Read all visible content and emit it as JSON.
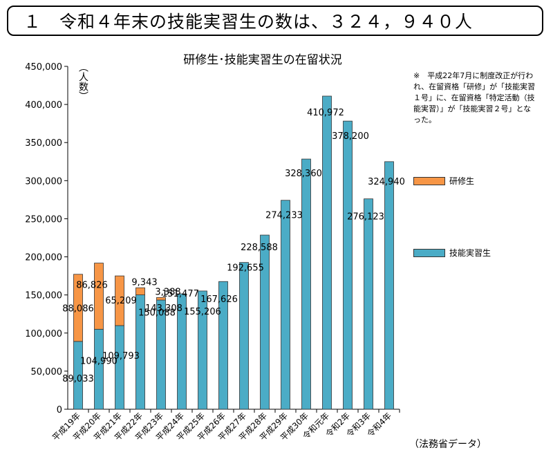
{
  "headline": "１　令和４年末の技能実習生の数は、３２４，９４０人",
  "chart_data": {
    "type": "bar",
    "stacked": true,
    "title": "研修生･技能実習生の在留状況",
    "ylabel": "（人数）",
    "xlabel": "",
    "ylim": [
      0,
      450000
    ],
    "yticks": [
      0,
      50000,
      100000,
      150000,
      200000,
      250000,
      300000,
      350000,
      400000,
      450000
    ],
    "ytick_labels": [
      "0",
      "50,000",
      "100,000",
      "150,000",
      "200,000",
      "250,000",
      "300,000",
      "350,000",
      "400,000",
      "450,000"
    ],
    "categories": [
      "平成19年",
      "平成20年",
      "平成21年",
      "平成22年",
      "平成23年",
      "平成24年",
      "平成25年",
      "平成26年",
      "平成27年",
      "平成28年",
      "平成29年",
      "平成30年",
      "令和元年",
      "令和2年",
      "令和3年",
      "令和4年"
    ],
    "series": [
      {
        "name": "技能実習生",
        "color": "#4bacc6",
        "values": [
          89033,
          104990,
          109793,
          150088,
          143308,
          151477,
          155206,
          167626,
          192655,
          228588,
          274233,
          328360,
          410972,
          378200,
          276123,
          324940
        ],
        "labels": [
          "89,033",
          "104,990",
          "109,793",
          "150,088",
          "143,308",
          "151,477",
          "155,206",
          "167,626",
          "192,655",
          "228,588",
          "274,233",
          "328,360",
          "410,972",
          "378,200",
          "276,123",
          "324,940"
        ]
      },
      {
        "name": "研修生",
        "color": "#f79646",
        "values": [
          88086,
          86826,
          65209,
          9343,
          3388,
          0,
          0,
          0,
          0,
          0,
          0,
          0,
          0,
          0,
          0,
          0
        ],
        "labels": [
          "88,086",
          "86,826",
          "65,209",
          "9,343",
          "3,388",
          "",
          "",
          "",
          "",
          "",
          "",
          "",
          "",
          "",
          "",
          ""
        ]
      }
    ],
    "legend": "right",
    "grid": false
  },
  "note": "※　平成22年7月に制度改正が行われ、在留資格「研修」が「技能実習１号」に、在留資格「特定活動（技能実習）」が「技能実習２号」となった。",
  "source": "（法務省データ）"
}
